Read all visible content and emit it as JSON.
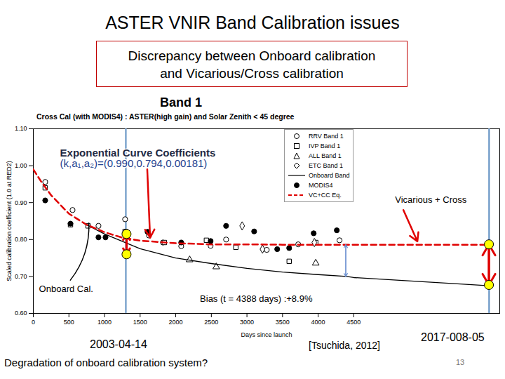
{
  "slide": {
    "title": "ASTER VNIR Band Calibration issues",
    "box": [
      "Discrepancy between Onboard calibration",
      "and Vicarious/Cross calibration"
    ],
    "notes": [
      "2003-04-14",
      "[Tsuchida, 2012]",
      "2017-008-05",
      "Degradation of onboard calibration system?",
      "13"
    ]
  },
  "chart_data": {
    "type": "scatter",
    "title": "Band 1",
    "subtitle": "Cross Cal (with MODIS4) : ASTER(high gain) and Solar Zenith < 45 degree",
    "x_label": "Days since launch",
    "y_label": "Scaled calibration coefficient (1.0 at RED2)",
    "xlim": [
      0,
      6550
    ],
    "xticks": [
      0,
      500,
      1000,
      1500,
      2000,
      2500,
      3000,
      3500,
      4000,
      4500
    ],
    "ylim": [
      0.6,
      1.1
    ],
    "yticks": [
      {
        "value": 0.6,
        "label": "0.60"
      },
      {
        "value": 0.7,
        "label": "0.70"
      },
      {
        "value": 0.8,
        "label": "0.80"
      },
      {
        "value": 0.9,
        "label": "0.90"
      },
      {
        "value": 1.0,
        "label": "1.00"
      },
      {
        "value": 1.1,
        "label": "1.10"
      }
    ],
    "grid": false,
    "legend": "top-right",
    "series": [
      {
        "name": "RRV Band 1",
        "type": "scatter",
        "marker": "circle_open",
        "color": "#000000",
        "x": [
          167,
          551,
          915,
          1289,
          1624,
          1821,
          2077,
          2490,
          2707,
          3278,
          3720,
          4300
        ],
        "values": [
          0.956,
          0.88,
          0.837,
          0.855,
          0.811,
          0.792,
          0.782,
          0.783,
          0.8,
          0.772,
          0.787,
          0.798
        ]
      },
      {
        "name": "IVP Band 1",
        "type": "scatter",
        "marker": "square_open",
        "color": "#000000",
        "x": [
          167,
          522,
          768,
          1289,
          1840,
          2431,
          2844,
          3593,
          3966
        ],
        "values": [
          0.94,
          0.84,
          0.837,
          0.822,
          0.792,
          0.798,
          0.779,
          0.741,
          0.792
        ]
      },
      {
        "name": "ALL Band 1",
        "type": "scatter",
        "marker": "triangle_open",
        "color": "#000000",
        "x": [
          2195,
          2569,
          3966
        ],
        "values": [
          0.745,
          0.726,
          0.736
        ]
      },
      {
        "name": "ETC Band 1",
        "type": "scatter",
        "marker": "diamond_open",
        "color": "#000000",
        "x": [
          2933,
          3218,
          3947
        ],
        "values": [
          0.837,
          0.774,
          0.792
        ]
      },
      {
        "name": "Onboard Band",
        "type": "line",
        "line_style": "solid",
        "color": "#000000",
        "x": [
          700,
          1000,
          1500,
          2000,
          2500,
          3000,
          3500,
          4000,
          4400,
          4500,
          6400
        ],
        "values": [
          0.845,
          0.815,
          0.775,
          0.75,
          0.735,
          0.722,
          0.712,
          0.705,
          0.7,
          0.697,
          0.675
        ]
      },
      {
        "name": "MODIS4",
        "type": "scatter",
        "marker": "circle",
        "color": "#000000",
        "x": [
          167,
          522,
          915,
          1014,
          1604,
          2077,
          2490,
          2707,
          3101,
          3425,
          3593,
          3937,
          4262
        ],
        "values": [
          0.906,
          0.843,
          0.806,
          0.806,
          0.821,
          0.792,
          0.796,
          0.837,
          0.822,
          0.774,
          0.777,
          0.817,
          0.825
        ]
      },
      {
        "name": "VC+CC Eq.",
        "type": "line",
        "line_style": "dashed",
        "color": "#e00000",
        "x": [
          0,
          100,
          250,
          500,
          750,
          1000,
          1250,
          1500,
          2000,
          2500,
          3000,
          3500,
          4000,
          4500,
          6400
        ],
        "values": [
          0.99,
          0.96,
          0.92,
          0.87,
          0.84,
          0.82,
          0.805,
          0.797,
          0.79,
          0.787,
          0.787,
          0.786,
          0.786,
          0.786,
          0.786
        ]
      }
    ],
    "vlines": {
      "x": [
        1300,
        6400
      ],
      "color": "#5b8cc0"
    },
    "highlights": [
      {
        "x": 1309,
        "y1": 0.815,
        "y2": 0.76
      },
      {
        "x": 6398,
        "y1": 0.787,
        "y2": 0.677
      }
    ],
    "bias_arrow": {
      "x": 4388,
      "y1": 0.786,
      "y2": 0.7
    },
    "annotations": [
      {
        "text": "Exponential Curve Coefficients",
        "x": 375,
        "y": 1.035,
        "color": "#1f2a44",
        "arrow": {
          "x1": 1600,
          "y1": 0.99,
          "x2": 1640,
          "y2": 0.805
        }
      },
      {
        "text": "(k,a₁,a₂)=(0.990,0.794,0.00181)",
        "x": 375,
        "y": 1.005,
        "color": "#1f3f8f"
      },
      {
        "text": "Vicarious + Cross",
        "x": 5080,
        "y": 0.907,
        "color": "#000000",
        "arrow": {
          "x1": 5197,
          "y1": 0.88,
          "x2": 5394,
          "y2": 0.795
        }
      },
      {
        "text": "Onboard Cal.",
        "x": 80,
        "y": 0.665,
        "color": "#000000",
        "arrow": {
          "x1": 520,
          "y1": 0.69,
          "x2": 780,
          "y2": 0.845
        }
      },
      {
        "text": "Bias (t = 4388 days) :+8.9%",
        "x": 2340,
        "y": 0.64,
        "color": "#000000"
      }
    ]
  }
}
